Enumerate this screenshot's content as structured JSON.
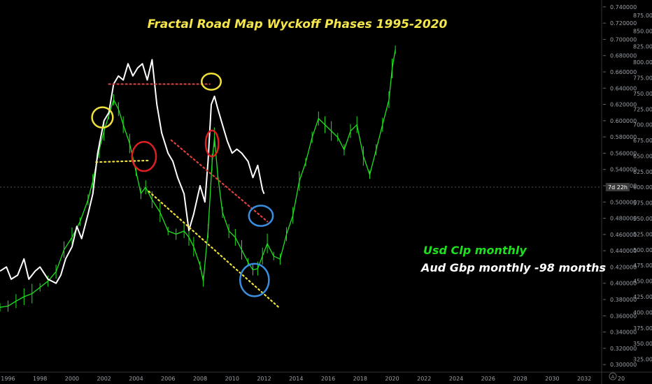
{
  "chart_data": {
    "type": "line",
    "title": "Fractal Road Map Wyckoff Phases  1995-2020",
    "legend": [
      {
        "label": "Usd Clp monthly",
        "color": "#1fe01f"
      },
      {
        "label": "Aud Gbp monthly -98 months",
        "color": "#ffffff"
      }
    ],
    "x_ticks": [
      "1996",
      "1998",
      "2000",
      "2002",
      "2004",
      "2006",
      "2008",
      "2010",
      "2012",
      "2014",
      "2016",
      "2018",
      "2020",
      "2022",
      "2024",
      "2026",
      "2028",
      "2030",
      "2032"
    ],
    "x_partial_label": "20",
    "xlim": [
      1995.5,
      2033
    ],
    "left_axis_ticks": [
      "0.740000",
      "0.720000",
      "0.700000",
      "0.680000",
      "0.660000",
      "0.640000",
      "0.620000",
      "0.600000",
      "0.580000",
      "0.560000",
      "0.540000",
      "0.520000",
      "0.500000",
      "0.480000",
      "0.460000",
      "0.440000",
      "0.420000",
      "0.400000",
      "0.380000",
      "0.360000",
      "0.340000",
      "0.320000",
      "0.300000"
    ],
    "left_ylim": [
      0.295,
      0.745
    ],
    "right_axis_ticks": [
      "875.00",
      "850.00",
      "825.00",
      "800.00",
      "775.00",
      "750.00",
      "725.00",
      "700.00",
      "675.00",
      "650.00",
      "625.00",
      "600.00",
      "575.00",
      "550.00",
      "525.00",
      "500.00",
      "475.00",
      "450.00",
      "425.00",
      "400.00",
      "375.00",
      "350.00",
      "325.00"
    ],
    "right_ylim": [
      310,
      895
    ],
    "crosshair_label": "7d 22h",
    "corner_icon_letter": "A",
    "series": [
      {
        "name": "Usd Clp monthly",
        "axis": "right",
        "color": "#1fe01f",
        "x": [
          1995.5,
          1996,
          1996.5,
          1997,
          1997.5,
          1998,
          1998.5,
          1999,
          1999.5,
          2000,
          2000.5,
          2001,
          2001.3,
          2001.7,
          2002,
          2002.3,
          2002.6,
          2002.9,
          2003.2,
          2003.6,
          2004,
          2004.3,
          2004.6,
          2005,
          2005.5,
          2006,
          2006.5,
          2007,
          2007.3,
          2007.6,
          2008,
          2008.2,
          2008.5,
          2008.75,
          2008.9,
          2009.1,
          2009.4,
          2009.8,
          2010.2,
          2010.6,
          2011,
          2011.3,
          2011.6,
          2011.9,
          2012.2,
          2012.6,
          2013,
          2013.4,
          2013.8,
          2014.2,
          2014.6,
          2015,
          2015.4,
          2015.8,
          2016.2,
          2016.6,
          2017,
          2017.4,
          2017.8,
          2018.2,
          2018.6,
          2019,
          2019.4,
          2019.8,
          2020,
          2020.2
        ],
        "y": [
          408,
          410,
          418,
          425,
          430,
          440,
          450,
          465,
          500,
          520,
          545,
          580,
          610,
          660,
          690,
          715,
          740,
          725,
          700,
          670,
          625,
          590,
          600,
          580,
          560,
          530,
          525,
          530,
          520,
          505,
          475,
          450,
          530,
          640,
          680,
          620,
          560,
          530,
          520,
          500,
          480,
          468,
          470,
          490,
          510,
          490,
          485,
          525,
          555,
          610,
          640,
          680,
          710,
          700,
          690,
          680,
          660,
          690,
          700,
          650,
          620,
          660,
          700,
          740,
          790,
          820
        ]
      },
      {
        "name": "Aud Gbp monthly -98 months",
        "axis": "left",
        "color": "#ffffff",
        "x": [
          1995.5,
          1995.9,
          1996.2,
          1996.6,
          1997,
          1997.3,
          1997.7,
          1998,
          1998.5,
          1999,
          1999.3,
          1999.6,
          2000,
          2000.3,
          2000.6,
          2001,
          2001.3,
          2001.6,
          2002,
          2002.3,
          2002.6,
          2002.9,
          2003.2,
          2003.5,
          2003.8,
          2004.1,
          2004.4,
          2004.7,
          2005,
          2005.3,
          2005.6,
          2006,
          2006.3,
          2006.6,
          2007,
          2007.3,
          2007.6,
          2008,
          2008.3,
          2008.5,
          2008.7,
          2008.9,
          2009.1,
          2009.4,
          2009.7,
          2010,
          2010.3,
          2010.6,
          2011,
          2011.3,
          2011.6,
          2011.9,
          2012
        ],
        "y": [
          0.415,
          0.42,
          0.405,
          0.41,
          0.43,
          0.405,
          0.415,
          0.42,
          0.405,
          0.4,
          0.41,
          0.43,
          0.445,
          0.47,
          0.455,
          0.485,
          0.51,
          0.56,
          0.6,
          0.61,
          0.645,
          0.655,
          0.65,
          0.67,
          0.655,
          0.665,
          0.67,
          0.65,
          0.675,
          0.62,
          0.585,
          0.56,
          0.55,
          0.53,
          0.51,
          0.465,
          0.485,
          0.52,
          0.5,
          0.55,
          0.62,
          0.63,
          0.615,
          0.595,
          0.575,
          0.56,
          0.565,
          0.56,
          0.55,
          0.53,
          0.545,
          0.515,
          0.51
        ]
      }
    ],
    "annotations": {
      "dotted_lines": [
        {
          "color": "#e04040",
          "x1": 2002.3,
          "y1_left": 0.645,
          "x2": 2008.6,
          "y2_left": 0.645
        },
        {
          "color": "#f0e03a",
          "x1": 2001.5,
          "y1_left": 0.549,
          "x2": 2004.8,
          "y2_left": 0.551
        },
        {
          "color": "#e04040",
          "x1": 2006.2,
          "y1_left": 0.576,
          "x2": 2012.2,
          "y2_left": 0.476
        },
        {
          "color": "#f0e03a",
          "x1": 2004.8,
          "y1_left": 0.513,
          "x2": 2013.0,
          "y2_left": 0.369
        }
      ],
      "ellipses": [
        {
          "color": "#f0e03a",
          "cx": 2001.9,
          "cy_left": 0.604,
          "rx_years": 0.65,
          "ry_value": 0.0125
        },
        {
          "color": "#f0e03a",
          "cx": 2008.7,
          "cy_left": 0.648,
          "rx_years": 0.6,
          "ry_value": 0.01
        },
        {
          "color": "#e02020",
          "cx": 2004.5,
          "cy_left": 0.556,
          "rx_years": 0.75,
          "ry_value": 0.018
        },
        {
          "color": "#e02020",
          "cx": 2008.75,
          "cy_left": 0.572,
          "rx_years": 0.4,
          "ry_value": 0.016
        },
        {
          "color": "#3a8ee0",
          "cx": 2011.8,
          "cy_left": 0.483,
          "rx_years": 0.75,
          "ry_value": 0.0125
        },
        {
          "color": "#3a8ee0",
          "cx": 2011.4,
          "cy_left": 0.404,
          "rx_years": 0.9,
          "ry_value": 0.02
        }
      ]
    }
  }
}
